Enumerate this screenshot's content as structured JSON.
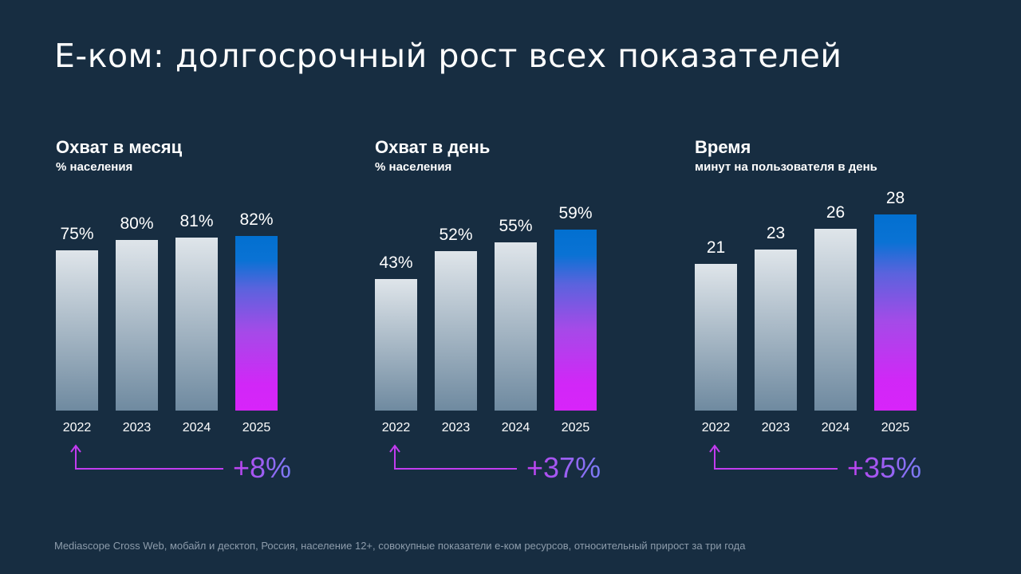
{
  "title": "Е-ком: долгосрочный рост всех показателей",
  "footer": "Mediascope Cross Web, мобайл и десктоп, Россия, население 12+, совокупные показатели е-ком ресурсов, относительный прирост за три года",
  "colors": {
    "background": "#172d41",
    "highlight_top": "#0270d0",
    "highlight_bottom": "#d824fa",
    "bar_top": "#dfe5ea",
    "bar_bottom": "#6f8aa0"
  },
  "chart_data": [
    {
      "type": "bar",
      "title": "Охват в месяц",
      "subtitle": "% населения",
      "categories": [
        "2022",
        "2023",
        "2024",
        "2025"
      ],
      "values": [
        75,
        80,
        81,
        82
      ],
      "labels": [
        "75%",
        "80%",
        "81%",
        "82%"
      ],
      "ylim": [
        0,
        92
      ],
      "growth": "+8%"
    },
    {
      "type": "bar",
      "title": "Охват в день",
      "subtitle": "% населения",
      "categories": [
        "2022",
        "2023",
        "2024",
        "2025"
      ],
      "values": [
        43,
        52,
        55,
        59
      ],
      "labels": [
        "43%",
        "52%",
        "55%",
        "59%"
      ],
      "ylim": [
        0,
        64
      ],
      "growth": "+37%"
    },
    {
      "type": "bar",
      "title": "Время",
      "subtitle": "минут на пользователя в день",
      "categories": [
        "2022",
        "2023",
        "2024",
        "2025"
      ],
      "values": [
        21,
        23,
        26,
        28
      ],
      "labels": [
        "21",
        "23",
        "26",
        "28"
      ],
      "ylim": [
        0,
        28
      ],
      "growth": "+35%"
    }
  ]
}
